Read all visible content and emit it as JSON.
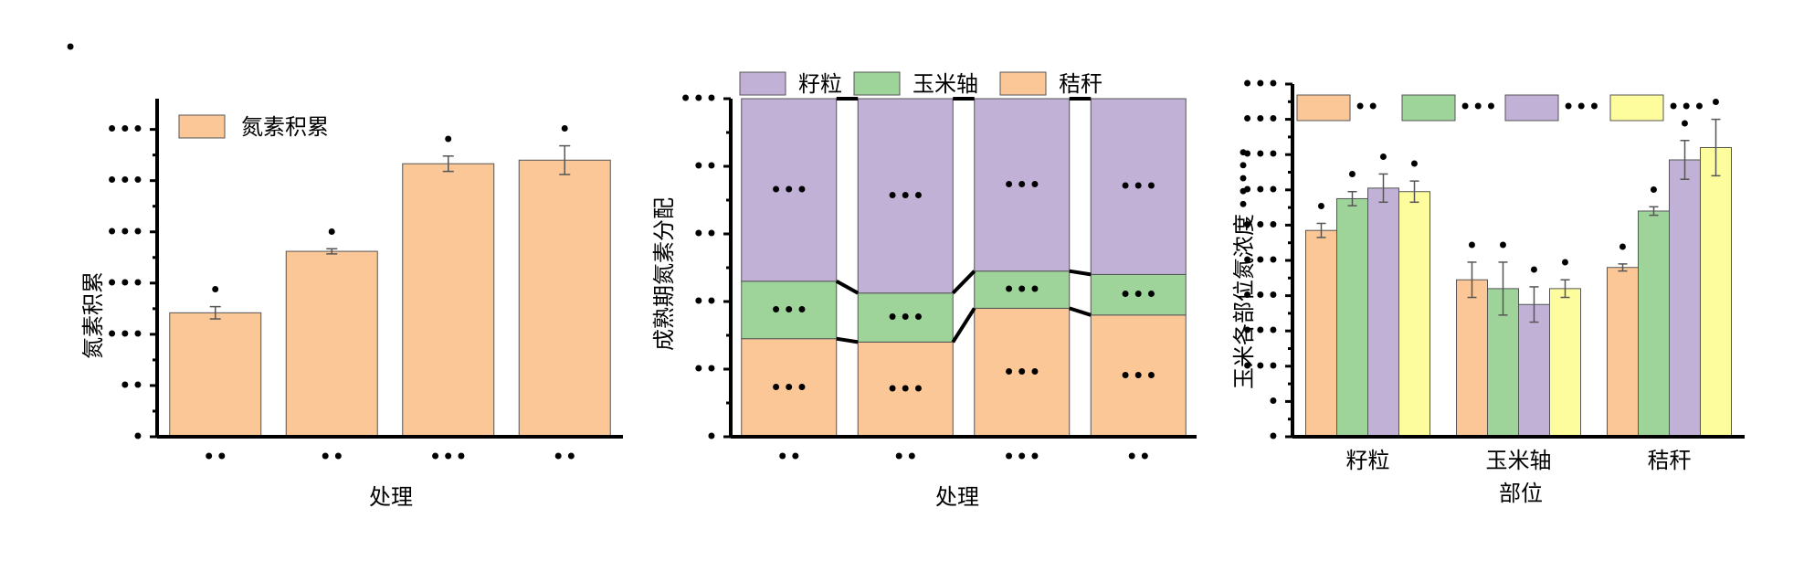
{
  "figure": {
    "panel_marker": "•"
  },
  "chart_data": [
    {
      "type": "bar",
      "ylabel": "氮素积累",
      "xlabel": "处理",
      "legend": {
        "label": "氮素积累",
        "placement": "top-left"
      },
      "ylim": [
        0,
        6.6
      ],
      "yticks": [
        0,
        1,
        2,
        3,
        4,
        5,
        6
      ],
      "ytick_labels": [
        "•",
        "••",
        "•••",
        "•••",
        "•••",
        "•••",
        "•••"
      ],
      "categories": [
        "••",
        "••",
        "•••",
        "••"
      ],
      "values": [
        2.42,
        3.62,
        5.33,
        5.4
      ],
      "errors": [
        0.12,
        0.05,
        0.15,
        0.28
      ],
      "sig_labels": [
        "•",
        "•",
        "•",
        "•"
      ],
      "colors": {
        "bar": "#FBC797"
      }
    },
    {
      "type": "bar",
      "stacked": true,
      "ylabel": "成熟期氮素分配",
      "xlabel": "处理",
      "legend": {
        "placement": "top"
      },
      "ylim": [
        0,
        100
      ],
      "yticks": [
        0,
        20,
        40,
        60,
        80,
        100
      ],
      "ytick_labels": [
        "•",
        "••",
        "••",
        "••",
        "••",
        "•••"
      ],
      "categories": [
        "••",
        "••",
        "•••",
        "••"
      ],
      "series": [
        {
          "name": "秸秆",
          "values": [
            29,
            28,
            38,
            36
          ],
          "color": "#FBC797",
          "labels": [
            "•••",
            "•••",
            "•••",
            "•••"
          ]
        },
        {
          "name": "玉米轴",
          "values": [
            17,
            14.5,
            11,
            12
          ],
          "color": "#9ED49A",
          "labels": [
            "•••",
            "•••",
            "•••",
            "•••"
          ]
        },
        {
          "name": "籽粒",
          "values": [
            54,
            57.5,
            51,
            52
          ],
          "color": "#C2B1D6",
          "labels": [
            "•••",
            "•••",
            "•••",
            "•••"
          ]
        }
      ]
    },
    {
      "type": "bar",
      "ylabel": "玉米各部位氮浓度",
      "ylabel_suffix": "•••••",
      "xlabel": "部位",
      "legend": {
        "placement": "top"
      },
      "ylim": [
        0,
        10
      ],
      "yticks": [
        0,
        1,
        2,
        3,
        4,
        5,
        6,
        7,
        8,
        9,
        10
      ],
      "ytick_labels": [
        "•",
        "•",
        "•••",
        "•••",
        "•••",
        "•••",
        "•••",
        "•••",
        "•••",
        "•••",
        "•••"
      ],
      "categories": [
        "籽粒",
        "玉米轴",
        "秸秆"
      ],
      "series": [
        {
          "name": "••",
          "values": [
            5.85,
            4.45,
            4.8
          ],
          "errors": [
            0.2,
            0.5,
            0.1
          ],
          "color": "#FBC797",
          "sig_labels": [
            "•",
            "•",
            "•"
          ]
        },
        {
          "name": "•••",
          "values": [
            6.75,
            4.2,
            6.4
          ],
          "errors": [
            0.2,
            0.75,
            0.12
          ],
          "color": "#9ED49A",
          "sig_labels": [
            "•",
            "•",
            "•"
          ]
        },
        {
          "name": "•••",
          "values": [
            7.05,
            3.75,
            7.85
          ],
          "errors": [
            0.4,
            0.5,
            0.55
          ],
          "color": "#C2B1D6",
          "sig_labels": [
            "•",
            "•",
            "•"
          ]
        },
        {
          "name": "•••",
          "values": [
            6.95,
            4.2,
            8.2
          ],
          "errors": [
            0.3,
            0.25,
            0.8
          ],
          "color": "#FEFD9E",
          "sig_labels": [
            "•",
            "•",
            "•"
          ]
        }
      ]
    }
  ]
}
